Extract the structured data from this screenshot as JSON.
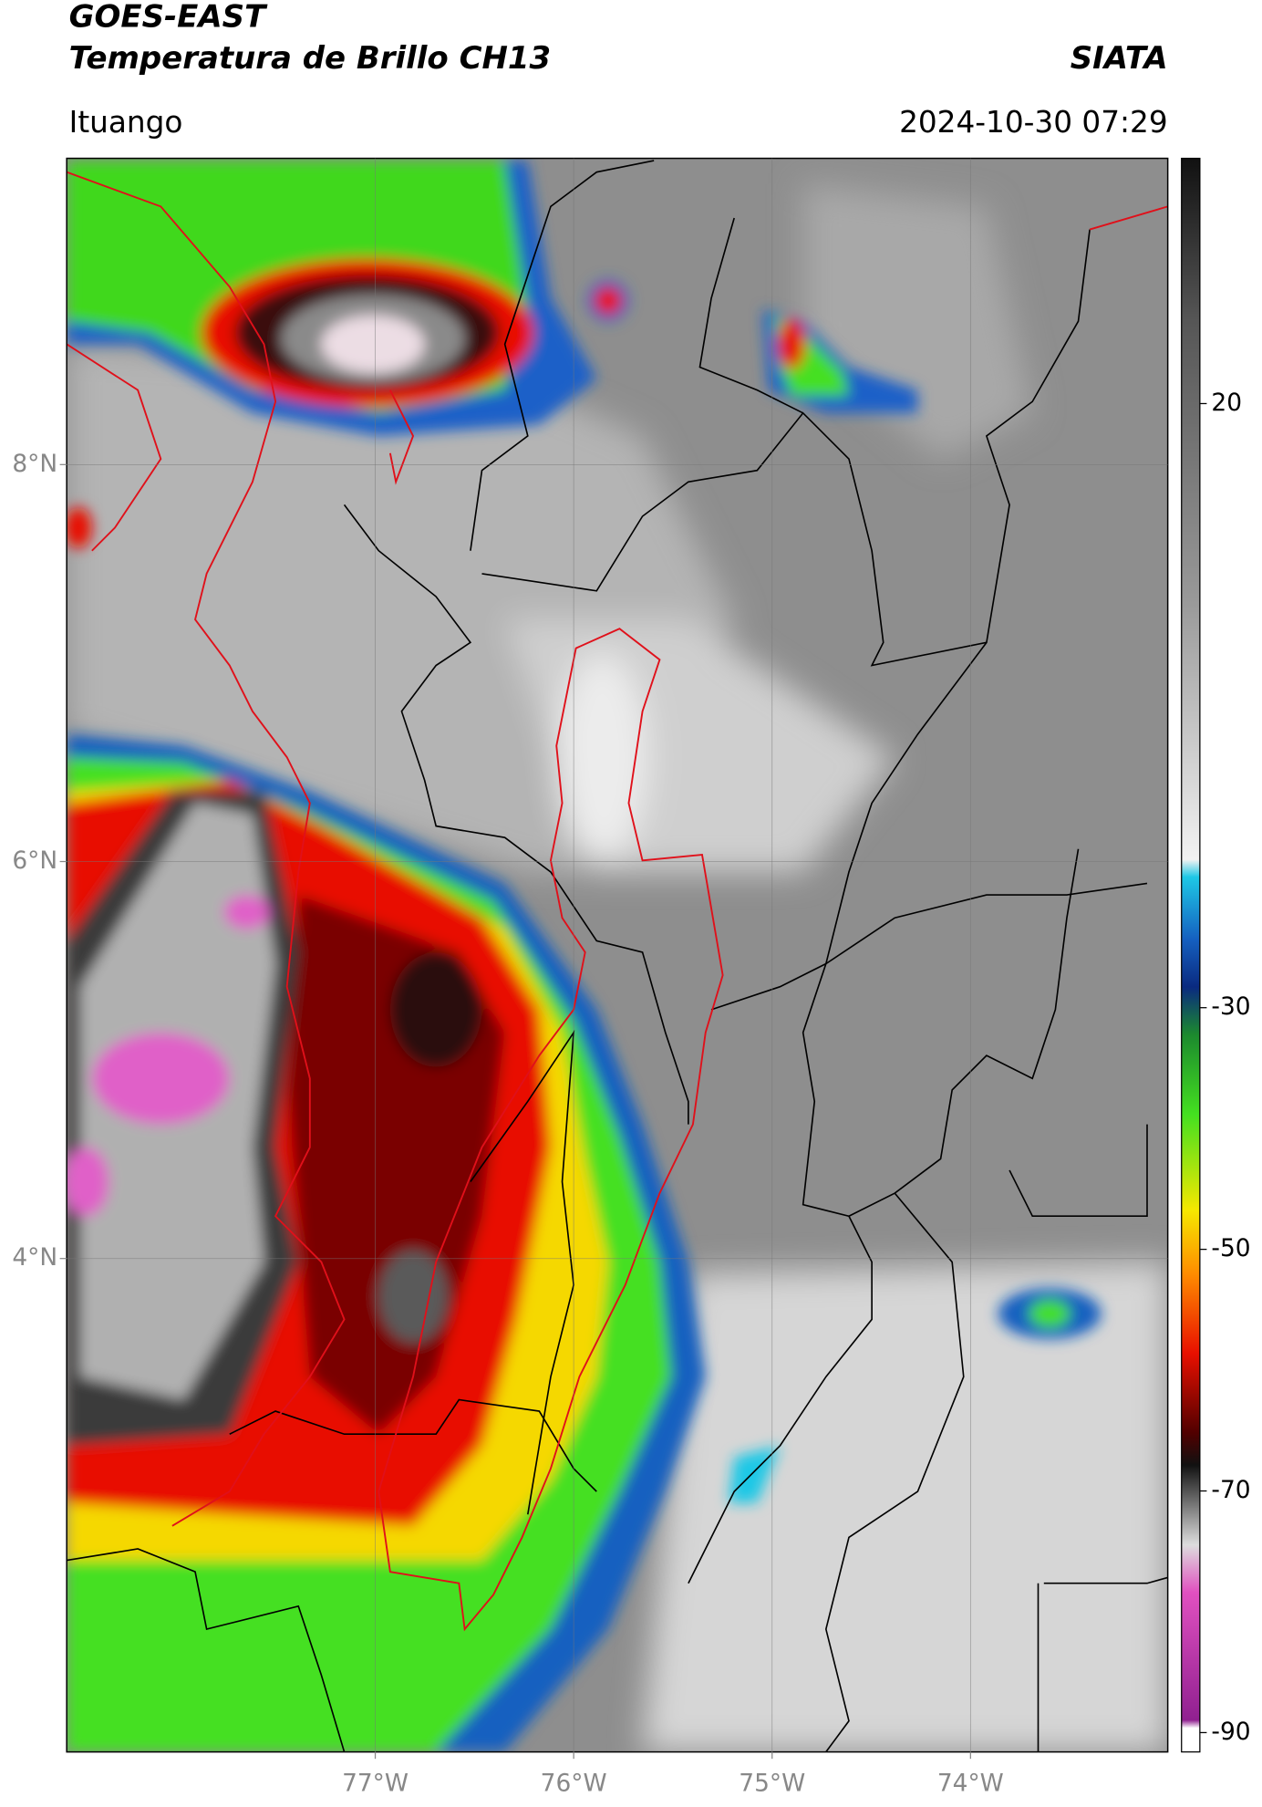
{
  "header": {
    "title": "GOES-EAST",
    "subtitle": "Temperatura de Brillo CH13",
    "source": "SIATA",
    "location": "Ituango",
    "datetime": "2024-10-30 07:29"
  },
  "map": {
    "lon_lim": [
      -78.555,
      -73.006
    ],
    "lat_lim": [
      1.514,
      9.543
    ],
    "lat_ticks": [
      {
        "value": 8,
        "label": "8°N"
      },
      {
        "value": 6,
        "label": "6°N"
      },
      {
        "value": 4,
        "label": "4°N"
      }
    ],
    "lon_ticks": [
      {
        "value": -77,
        "label": "77°W"
      },
      {
        "value": -76,
        "label": "76°W"
      },
      {
        "value": -75,
        "label": "75°W"
      },
      {
        "value": -74,
        "label": "74°W"
      }
    ],
    "grid": true
  },
  "colorbar": {
    "lim": [
      -91.6,
      40.3
    ],
    "ticks": [
      20,
      -30,
      -50,
      -70,
      -90
    ]
  }
}
